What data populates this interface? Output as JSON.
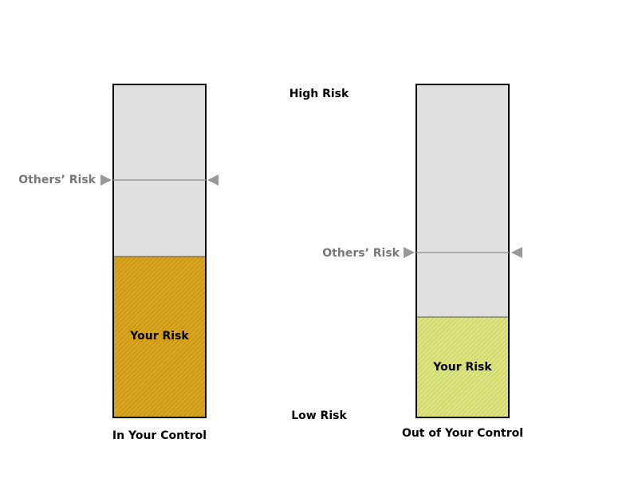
{
  "diagram": {
    "scale_labels": {
      "high": "High Risk",
      "low": "Low Risk"
    },
    "columns": [
      {
        "caption": "In Your Control",
        "others_label": "Others’ Risk",
        "your_label": "Your Risk",
        "others_level": 0.72,
        "your_level": 0.48,
        "fill_color": "#DAA520",
        "hatch_color": "#B8860B",
        "track_color": "#E0E0E0",
        "border_color": "#000000"
      },
      {
        "caption": "Out of Your Control",
        "others_label": "Others’ Risk",
        "your_label": "Your Risk",
        "others_level": 0.5,
        "your_level": 0.3,
        "fill_color": "#D4DB6E",
        "hatch_color": "#EEF2B0",
        "track_color": "#E0E0E0",
        "border_color": "#000000"
      }
    ],
    "marker_color": "#999999",
    "marker_text_color": "#777777",
    "background_color": "#FFFFFF"
  }
}
